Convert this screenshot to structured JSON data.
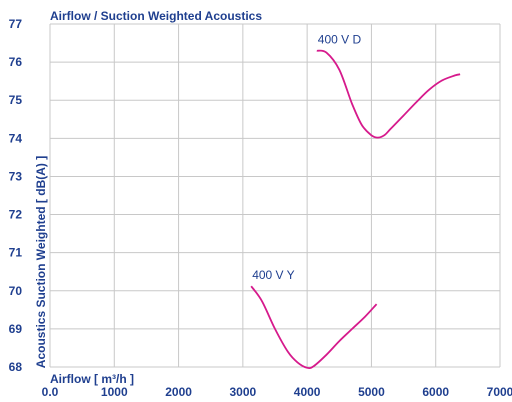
{
  "chart_data": {
    "type": "line",
    "title": "Airflow / Suction Weighted Acoustics",
    "xlabel": "Airflow [ m³/h ]",
    "ylabel": "Acoustics Suction Weighted [ dB(A) ]",
    "xlim": [
      0,
      7000
    ],
    "ylim": [
      68,
      77
    ],
    "x_ticks": [
      "0.0",
      "1000",
      "2000",
      "3000",
      "4000",
      "5000",
      "6000",
      "7000"
    ],
    "y_ticks": [
      "68",
      "69",
      "70",
      "71",
      "72",
      "73",
      "74",
      "75",
      "76",
      "77"
    ],
    "grid": true,
    "line_color": "#d61a8c",
    "series": [
      {
        "name": "400 V D",
        "x": [
          4150,
          4300,
          4500,
          4700,
          4850,
          5000,
          5100,
          5200,
          5300,
          5500,
          5700,
          5900,
          6100,
          6300,
          6380
        ],
        "y": [
          76.3,
          76.25,
          75.8,
          74.9,
          74.35,
          74.08,
          74.02,
          74.08,
          74.25,
          74.6,
          74.95,
          75.28,
          75.52,
          75.65,
          75.68
        ]
      },
      {
        "name": "400 V Y",
        "x": [
          3130,
          3300,
          3500,
          3700,
          3850,
          4000,
          4100,
          4300,
          4500,
          4700,
          4900,
          5080
        ],
        "y": [
          70.12,
          69.72,
          69.0,
          68.4,
          68.12,
          67.98,
          68.02,
          68.32,
          68.68,
          69.0,
          69.32,
          69.65
        ]
      }
    ]
  }
}
